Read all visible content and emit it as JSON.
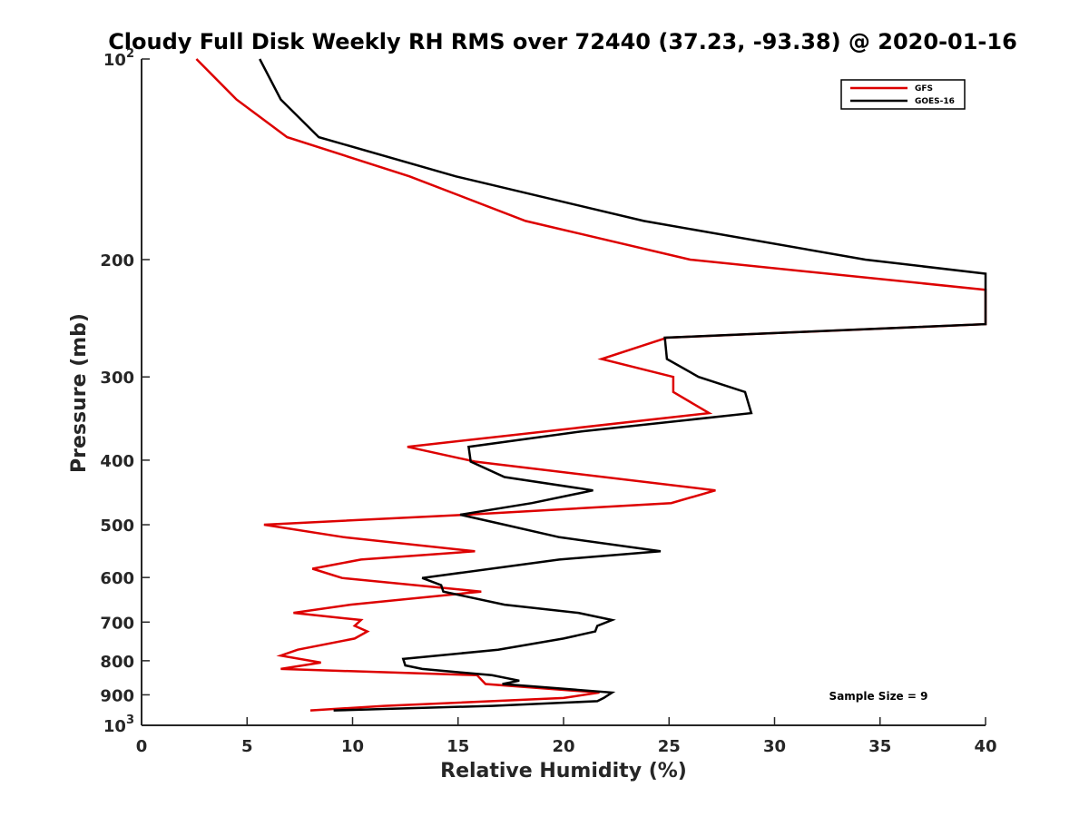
{
  "chart_data": {
    "type": "line",
    "title": "Cloudy Full Disk Weekly RH RMS over 72440 (37.23, -93.38) @ 2020-01-16",
    "xlabel": "Relative Humidity (%)",
    "ylabel": "Pressure (mb)",
    "xlim": [
      0,
      40
    ],
    "ylim": [
      100,
      1000
    ],
    "yscale": "log",
    "y_reversed": true,
    "x_ticks": [
      "0",
      "5",
      "10",
      "15",
      "20",
      "25",
      "30",
      "35",
      "40"
    ],
    "y_ticks": [
      {
        "value": 100,
        "base": "10",
        "exp": "2"
      },
      {
        "value": 200,
        "label": "200"
      },
      {
        "value": 300,
        "label": "300"
      },
      {
        "value": 400,
        "label": "400"
      },
      {
        "value": 500,
        "label": "500"
      },
      {
        "value": 600,
        "label": "600"
      },
      {
        "value": 700,
        "label": "700"
      },
      {
        "value": 800,
        "label": "800"
      },
      {
        "value": 900,
        "label": "900"
      },
      {
        "value": 1000,
        "base": "10",
        "exp": "3"
      }
    ],
    "grid": false,
    "legend": {
      "position": "top-right"
    },
    "annotation": "Sample Size = 9",
    "series": [
      {
        "name": "GFS",
        "color": "#dd0000",
        "points": [
          [
            2.6,
            100
          ],
          [
            4.5,
            115
          ],
          [
            6.9,
            131
          ],
          [
            12.7,
            150
          ],
          [
            18.2,
            175
          ],
          [
            26,
            200
          ],
          [
            40,
            222
          ],
          [
            40,
            250
          ],
          [
            24.9,
            262
          ],
          [
            21.8,
            282
          ],
          [
            25.2,
            300
          ],
          [
            25.2,
            316
          ],
          [
            26.9,
            340
          ],
          [
            12.6,
            382
          ],
          [
            15.8,
            402
          ],
          [
            27.2,
            444
          ],
          [
            25.1,
            464
          ],
          [
            15.4,
            483
          ],
          [
            5.8,
            500
          ],
          [
            9.6,
            522
          ],
          [
            15.8,
            548
          ],
          [
            10.4,
            564
          ],
          [
            8.1,
            582
          ],
          [
            9.5,
            601
          ],
          [
            16.1,
            630
          ],
          [
            9.9,
            659
          ],
          [
            7.2,
            678
          ],
          [
            10.4,
            695
          ],
          [
            10.1,
            709
          ],
          [
            10.7,
            723
          ],
          [
            10.1,
            741
          ],
          [
            7.4,
            770
          ],
          [
            6.6,
            786
          ],
          [
            8.5,
            805
          ],
          [
            6.6,
            823
          ],
          [
            15.9,
            841
          ],
          [
            16.3,
            867
          ],
          [
            21.7,
            893
          ],
          [
            20,
            910
          ],
          [
            11.5,
            935
          ],
          [
            8,
            950
          ]
        ]
      },
      {
        "name": "GOES-16",
        "color": "#000000",
        "points": [
          [
            5.6,
            100
          ],
          [
            6.6,
            115
          ],
          [
            8.4,
            131
          ],
          [
            14.9,
            150
          ],
          [
            23.8,
            175
          ],
          [
            34.3,
            200
          ],
          [
            40,
            210
          ],
          [
            40,
            250
          ],
          [
            24.8,
            262
          ],
          [
            24.9,
            282
          ],
          [
            26.4,
            300
          ],
          [
            28.6,
            316
          ],
          [
            28.9,
            340
          ],
          [
            20.9,
            362
          ],
          [
            15.5,
            382
          ],
          [
            15.6,
            402
          ],
          [
            17.2,
            424
          ],
          [
            21.4,
            444
          ],
          [
            18.5,
            464
          ],
          [
            15.1,
            483
          ],
          [
            17.2,
            500
          ],
          [
            19.8,
            522
          ],
          [
            24.6,
            548
          ],
          [
            19.8,
            564
          ],
          [
            13.3,
            601
          ],
          [
            14.2,
            616
          ],
          [
            14.3,
            630
          ],
          [
            17.2,
            659
          ],
          [
            20.7,
            678
          ],
          [
            22.3,
            695
          ],
          [
            21.6,
            709
          ],
          [
            21.5,
            723
          ],
          [
            20,
            741
          ],
          [
            16.9,
            770
          ],
          [
            12.4,
            795
          ],
          [
            12.5,
            813
          ],
          [
            13.3,
            823
          ],
          [
            16.6,
            841
          ],
          [
            17.9,
            857
          ],
          [
            17.1,
            867
          ],
          [
            22.3,
            893
          ],
          [
            21.9,
            910
          ],
          [
            21.6,
            920
          ],
          [
            16.6,
            935
          ],
          [
            9.1,
            950
          ]
        ]
      }
    ]
  }
}
